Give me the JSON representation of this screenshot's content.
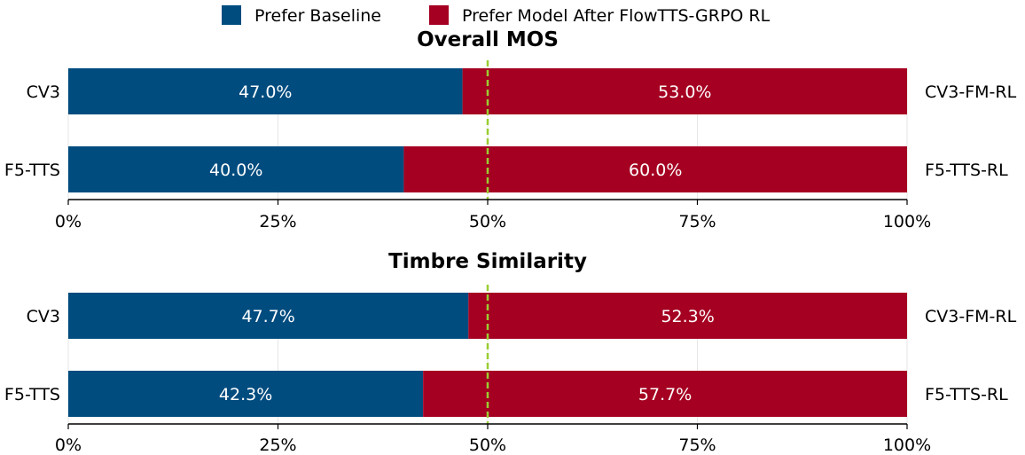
{
  "legend": {
    "items": [
      {
        "label": "Prefer Baseline",
        "color": "#004c7f"
      },
      {
        "label": "Prefer Model After FlowTTS-GRPO RL",
        "color": "#a50021"
      }
    ],
    "placement": "top-center"
  },
  "chart_data": [
    {
      "type": "bar",
      "orientation": "horizontal-stacked",
      "title": "Overall MOS",
      "categories": [
        "CV3",
        "F5-TTS"
      ],
      "right_labels": [
        "CV3-FM-RL",
        "F5-TTS-RL"
      ],
      "series": [
        {
          "name": "Prefer Baseline",
          "values": [
            47.0,
            40.0
          ],
          "color": "#004c7f"
        },
        {
          "name": "Prefer Model After FlowTTS-GRPO RL",
          "values": [
            53.0,
            60.0
          ],
          "color": "#a50021"
        }
      ],
      "data_labels": [
        [
          "47.0%",
          "40.0%"
        ],
        [
          "53.0%",
          "60.0%"
        ]
      ],
      "xlim": [
        0,
        100
      ],
      "xticks": [
        0,
        25,
        50,
        75,
        100
      ],
      "xtick_labels": [
        "0%",
        "25%",
        "50%",
        "75%",
        "100%"
      ],
      "reference_line": 50,
      "grid": true
    },
    {
      "type": "bar",
      "orientation": "horizontal-stacked",
      "title": "Timbre Similarity",
      "categories": [
        "CV3",
        "F5-TTS"
      ],
      "right_labels": [
        "CV3-FM-RL",
        "F5-TTS-RL"
      ],
      "series": [
        {
          "name": "Prefer Baseline",
          "values": [
            47.7,
            42.3
          ],
          "color": "#004c7f"
        },
        {
          "name": "Prefer Model After FlowTTS-GRPO RL",
          "values": [
            52.3,
            57.7
          ],
          "color": "#a50021"
        }
      ],
      "data_labels": [
        [
          "47.7%",
          "42.3%"
        ],
        [
          "52.3%",
          "57.7%"
        ]
      ],
      "xlim": [
        0,
        100
      ],
      "xticks": [
        0,
        25,
        50,
        75,
        100
      ],
      "xtick_labels": [
        "0%",
        "25%",
        "50%",
        "75%",
        "100%"
      ],
      "reference_line": 50,
      "grid": true
    }
  ]
}
